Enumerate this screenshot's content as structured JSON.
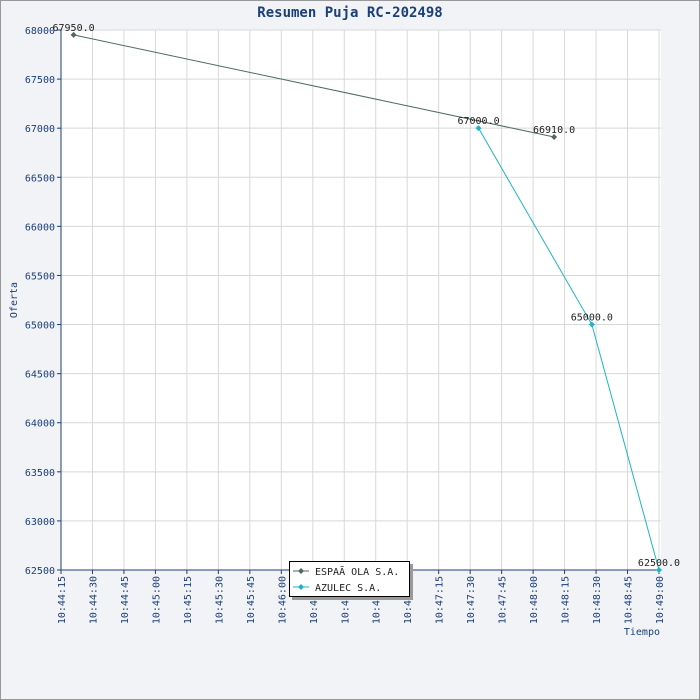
{
  "chart_data": {
    "type": "line",
    "title": "Resumen Puja RC-202498",
    "x_label": "Tiempo",
    "y_label": "Oferta",
    "xlim": [
      "10:44:15",
      "10:49:00"
    ],
    "xticks": [
      "10:44:15",
      "10:44:30",
      "10:44:45",
      "10:45:00",
      "10:45:15",
      "10:45:30",
      "10:45:45",
      "10:46:00",
      "10:46:15",
      "10:46:30",
      "10:46:45",
      "10:47:00",
      "10:47:15",
      "10:47:30",
      "10:47:45",
      "10:48:00",
      "10:48:15",
      "10:48:30",
      "10:48:45",
      "10:49:00"
    ],
    "ylim": [
      62500,
      68000
    ],
    "yticks": [
      62500,
      63000,
      63500,
      64000,
      64500,
      65000,
      65500,
      66000,
      66500,
      67000,
      67500,
      68000
    ],
    "grid": true,
    "series": [
      {
        "name": "ESPAÃ OLA S.A.",
        "color": "#4f6a5e",
        "x": [
          "10:44:21",
          "10:48:10"
        ],
        "values": [
          67950,
          66910
        ],
        "value_labels": [
          "67950.0",
          "66910.0"
        ]
      },
      {
        "name": "AZULEC S.A.",
        "color": "#1cb5c8",
        "x": [
          "10:47:34",
          "10:48:28",
          "10:49:00"
        ],
        "values": [
          67000,
          65000,
          62500
        ],
        "value_labels": [
          "67000.0",
          "65000.0",
          "62500.0"
        ]
      }
    ]
  }
}
